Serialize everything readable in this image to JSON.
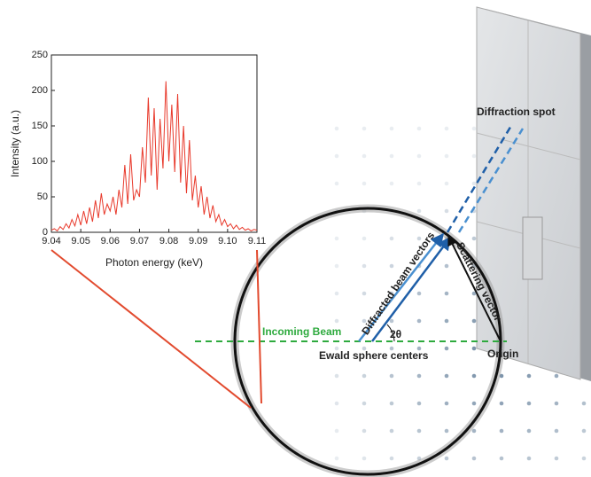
{
  "chart_data": {
    "type": "line",
    "x_label": "Photon energy (keV)",
    "y_label": "Intensity (a.u.)",
    "x": [
      9.04,
      9.041,
      9.042,
      9.043,
      9.044,
      9.045,
      9.046,
      9.047,
      9.048,
      9.049,
      9.05,
      9.051,
      9.052,
      9.053,
      9.054,
      9.055,
      9.056,
      9.057,
      9.058,
      9.059,
      9.06,
      9.061,
      9.062,
      9.063,
      9.064,
      9.065,
      9.066,
      9.067,
      9.068,
      9.069,
      9.07,
      9.071,
      9.072,
      9.073,
      9.074,
      9.075,
      9.076,
      9.077,
      9.078,
      9.079,
      9.08,
      9.081,
      9.082,
      9.083,
      9.084,
      9.085,
      9.086,
      9.087,
      9.088,
      9.089,
      9.09,
      9.091,
      9.092,
      9.093,
      9.094,
      9.095,
      9.096,
      9.097,
      9.098,
      9.099,
      9.1,
      9.101,
      9.102,
      9.103,
      9.104,
      9.105,
      9.106,
      9.107,
      9.108,
      9.109,
      9.11
    ],
    "series": [
      {
        "color": "#e8392b",
        "values": [
          3,
          5,
          2,
          8,
          4,
          12,
          6,
          18,
          9,
          25,
          10,
          30,
          12,
          35,
          15,
          45,
          20,
          55,
          25,
          40,
          30,
          50,
          25,
          60,
          35,
          95,
          40,
          110,
          45,
          60,
          50,
          120,
          70,
          190,
          80,
          175,
          60,
          160,
          90,
          213,
          100,
          180,
          85,
          195,
          70,
          150,
          55,
          130,
          45,
          80,
          35,
          65,
          25,
          50,
          20,
          38,
          15,
          25,
          10,
          18,
          8,
          12,
          5,
          10,
          4,
          7,
          3,
          5,
          2,
          4,
          3
        ]
      }
    ],
    "xlim": [
      9.04,
      9.11
    ],
    "xticks": [
      9.04,
      9.05,
      9.06,
      9.07,
      9.08,
      9.09,
      {
        "value": 9.1,
        "label": "9.10"
      },
      9.11
    ],
    "ylim": [
      0,
      250
    ],
    "yticks": [
      0,
      50,
      100,
      150,
      200,
      250
    ]
  },
  "diagram": {
    "diffraction_spot": "Diffraction spot",
    "diffracted_beam_vectors": "Diffracted beam vectors",
    "scattering_vector": "Scattering vector",
    "incoming_beam": "Incoming Beam",
    "angle": "2θ",
    "ewald_sphere_centers": "Ewald sphere centers",
    "origin": "Origin"
  }
}
